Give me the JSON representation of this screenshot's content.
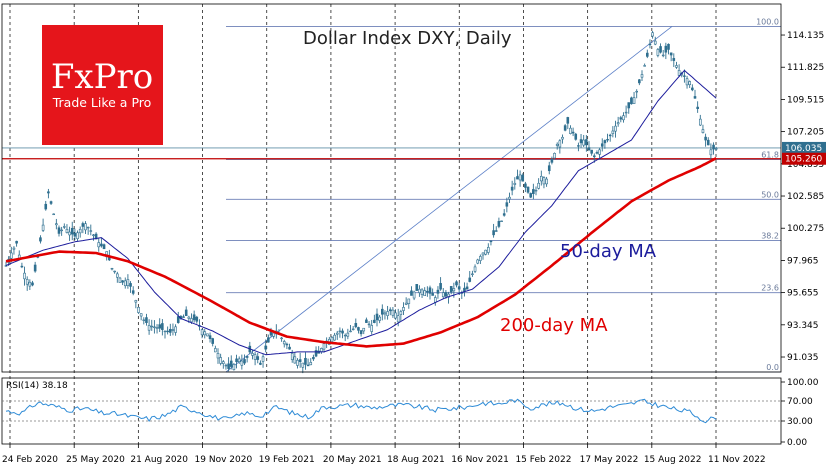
{
  "chart_data": {
    "type": "line",
    "title": "Dollar Index DXY, Daily",
    "logo": {
      "brand": "FxPro",
      "tagline": "Trade Like a Pro",
      "color": "#e5151b"
    },
    "x_labels": [
      "24 Feb 2020",
      "25 May 2020",
      "21 Aug 2020",
      "19 Nov 2020",
      "19 Feb 2021",
      "20 May 2021",
      "18 Aug 2021",
      "16 Nov 2021",
      "15 Feb 2022",
      "17 May 2022",
      "15 Aug 2022",
      "11 Nov 2022"
    ],
    "y_ticks": [
      "114.135",
      "111.825",
      "109.515",
      "107.205",
      "104.895",
      "102.585",
      "100.275",
      "97.965",
      "95.655",
      "93.345",
      "91.035"
    ],
    "ylim": [
      89.96,
      115.5
    ],
    "current_price": "106.035",
    "horizontal_level": "105.260",
    "colors": {
      "price": "#2f6f8f",
      "ma50": "#1c1c9c",
      "ma200": "#e00000",
      "level": "#c00000",
      "fib": "#6b7fb6",
      "rsi": "#2e8bd6",
      "badge": "#2f6f8f"
    },
    "fib_levels": [
      {
        "label": "100.0",
        "value": 114.75
      },
      {
        "label": "61.8",
        "value": 105.2
      },
      {
        "label": "50.0",
        "value": 102.35
      },
      {
        "label": "38.2",
        "value": 99.4
      },
      {
        "label": "23.6",
        "value": 95.65
      },
      {
        "label": "0.0",
        "value": 89.96
      }
    ],
    "series": [
      {
        "type": "candlestick",
        "date_range": [
          "2020-01-20",
          "2022-11-21"
        ],
        "points": [
          [
            0,
            97.6
          ],
          [
            2,
            98.5
          ],
          [
            4,
            99.2
          ],
          [
            6,
            97.5
          ],
          [
            8,
            96.6
          ],
          [
            10,
            96.2
          ],
          [
            12,
            98.2
          ],
          [
            14,
            100.5
          ],
          [
            16,
            102.8
          ],
          [
            18,
            101.3
          ],
          [
            20,
            99.9
          ],
          [
            22,
            100.4
          ],
          [
            24,
            100.0
          ],
          [
            26,
            99.7
          ],
          [
            28,
            100.2
          ],
          [
            30,
            100.6
          ],
          [
            32,
            100.1
          ],
          [
            34,
            99.5
          ],
          [
            36,
            99.0
          ],
          [
            38,
            98.6
          ],
          [
            40,
            97.4
          ],
          [
            42,
            97.0
          ],
          [
            44,
            96.4
          ],
          [
            46,
            96.6
          ],
          [
            48,
            95.6
          ],
          [
            50,
            94.6
          ],
          [
            52,
            93.7
          ],
          [
            54,
            93.3
          ],
          [
            56,
            93.2
          ],
          [
            58,
            93.1
          ],
          [
            60,
            92.9
          ],
          [
            62,
            92.8
          ],
          [
            64,
            93.2
          ],
          [
            66,
            93.8
          ],
          [
            68,
            94.0
          ],
          [
            70,
            93.8
          ],
          [
            72,
            93.6
          ],
          [
            74,
            93.0
          ],
          [
            76,
            92.7
          ],
          [
            78,
            92.0
          ],
          [
            80,
            91.3
          ],
          [
            82,
            90.7
          ],
          [
            84,
            90.2
          ],
          [
            86,
            90.5
          ],
          [
            88,
            90.9
          ],
          [
            90,
            90.6
          ],
          [
            92,
            91.4
          ],
          [
            94,
            91.2
          ],
          [
            96,
            90.5
          ],
          [
            98,
            91.6
          ],
          [
            100,
            92.6
          ],
          [
            102,
            92.9
          ],
          [
            104,
            92.4
          ],
          [
            106,
            91.9
          ],
          [
            108,
            91.3
          ],
          [
            110,
            90.8
          ],
          [
            112,
            90.6
          ],
          [
            114,
            90.4
          ],
          [
            116,
            90.9
          ],
          [
            118,
            91.3
          ],
          [
            120,
            92.0
          ],
          [
            122,
            92.3
          ],
          [
            124,
            92.6
          ],
          [
            126,
            92.9
          ],
          [
            128,
            92.6
          ],
          [
            130,
            92.9
          ],
          [
            132,
            93.2
          ],
          [
            134,
            92.7
          ],
          [
            136,
            93.5
          ],
          [
            138,
            93.3
          ],
          [
            140,
            93.7
          ],
          [
            142,
            94.1
          ],
          [
            144,
            94.3
          ],
          [
            146,
            94.4
          ],
          [
            148,
            94.0
          ],
          [
            150,
            94.6
          ],
          [
            152,
            95.2
          ],
          [
            154,
            95.7
          ],
          [
            156,
            95.9
          ],
          [
            158,
            95.8
          ],
          [
            160,
            95.6
          ],
          [
            162,
            95.3
          ],
          [
            164,
            95.9
          ],
          [
            166,
            95.4
          ],
          [
            168,
            95.7
          ],
          [
            170,
            96.2
          ],
          [
            172,
            95.6
          ],
          [
            174,
            95.9
          ],
          [
            176,
            97.0
          ],
          [
            178,
            98.0
          ],
          [
            180,
            98.5
          ],
          [
            182,
            98.9
          ],
          [
            184,
            99.8
          ],
          [
            186,
            100.4
          ],
          [
            188,
            101.2
          ],
          [
            190,
            102.5
          ],
          [
            192,
            103.5
          ],
          [
            194,
            104.1
          ],
          [
            196,
            103.2
          ],
          [
            198,
            102.5
          ],
          [
            200,
            103.0
          ],
          [
            202,
            104.0
          ],
          [
            204,
            103.8
          ],
          [
            206,
            105.0
          ],
          [
            208,
            106.3
          ],
          [
            210,
            106.8
          ],
          [
            212,
            107.8
          ],
          [
            214,
            107.1
          ],
          [
            216,
            106.2
          ],
          [
            218,
            106.6
          ],
          [
            220,
            105.9
          ],
          [
            222,
            105.4
          ],
          [
            224,
            105.9
          ],
          [
            226,
            106.4
          ],
          [
            228,
            106.9
          ],
          [
            230,
            107.6
          ],
          [
            232,
            108.1
          ],
          [
            234,
            108.6
          ],
          [
            236,
            109.2
          ],
          [
            238,
            110.1
          ],
          [
            240,
            111.3
          ],
          [
            242,
            112.6
          ],
          [
            244,
            114.3
          ],
          [
            246,
            113.1
          ],
          [
            248,
            112.7
          ],
          [
            250,
            113.1
          ],
          [
            252,
            112.3
          ],
          [
            254,
            111.6
          ],
          [
            256,
            111.2
          ],
          [
            258,
            110.8
          ],
          [
            260,
            109.6
          ],
          [
            262,
            108.1
          ],
          [
            264,
            106.6
          ],
          [
            266,
            105.9
          ],
          [
            268,
            106.0
          ]
        ]
      },
      {
        "name": "50-day MA",
        "type": "line",
        "points": [
          [
            0,
            97.6
          ],
          [
            14,
            98.7
          ],
          [
            26,
            99.3
          ],
          [
            36,
            99.6
          ],
          [
            46,
            98.1
          ],
          [
            56,
            95.7
          ],
          [
            66,
            93.8
          ],
          [
            78,
            92.9
          ],
          [
            88,
            91.9
          ],
          [
            98,
            91.2
          ],
          [
            110,
            91.4
          ],
          [
            120,
            91.4
          ],
          [
            132,
            92.2
          ],
          [
            144,
            93.0
          ],
          [
            156,
            94.4
          ],
          [
            166,
            95.3
          ],
          [
            176,
            95.9
          ],
          [
            186,
            97.5
          ],
          [
            196,
            100.0
          ],
          [
            206,
            101.9
          ],
          [
            216,
            104.4
          ],
          [
            226,
            105.5
          ],
          [
            236,
            106.6
          ],
          [
            246,
            109.4
          ],
          [
            256,
            111.6
          ],
          [
            262,
            110.6
          ],
          [
            268,
            109.6
          ]
        ]
      },
      {
        "name": "200-day MA",
        "type": "line",
        "points": [
          [
            0,
            97.9
          ],
          [
            20,
            98.6
          ],
          [
            34,
            98.5
          ],
          [
            46,
            97.9
          ],
          [
            60,
            96.8
          ],
          [
            76,
            95.2
          ],
          [
            92,
            93.5
          ],
          [
            106,
            92.5
          ],
          [
            120,
            92.1
          ],
          [
            136,
            91.8
          ],
          [
            150,
            92.0
          ],
          [
            164,
            92.8
          ],
          [
            178,
            93.9
          ],
          [
            192,
            95.5
          ],
          [
            206,
            97.6
          ],
          [
            222,
            100.1
          ],
          [
            236,
            102.2
          ],
          [
            250,
            103.7
          ],
          [
            262,
            104.7
          ],
          [
            268,
            105.3
          ]
        ]
      }
    ],
    "ma_labels": [
      {
        "text": "50-day MA",
        "color": "#1c1c9c"
      },
      {
        "text": "200-day MA",
        "color": "#e00000"
      }
    ],
    "rsi": {
      "label": "RSI(14) 38.18",
      "ticks": [
        "100.00",
        "70.00",
        "30.00",
        "0.00"
      ],
      "range": [
        0,
        100
      ],
      "dotted_levels": [
        70,
        30
      ],
      "values": [
        [
          0,
          50
        ],
        [
          6,
          46
        ],
        [
          12,
          67
        ],
        [
          18,
          60
        ],
        [
          24,
          52
        ],
        [
          30,
          55
        ],
        [
          36,
          46
        ],
        [
          42,
          44
        ],
        [
          48,
          38
        ],
        [
          54,
          34
        ],
        [
          60,
          41
        ],
        [
          66,
          58
        ],
        [
          72,
          50
        ],
        [
          78,
          38
        ],
        [
          84,
          33
        ],
        [
          90,
          46
        ],
        [
          96,
          40
        ],
        [
          102,
          58
        ],
        [
          108,
          46
        ],
        [
          114,
          38
        ],
        [
          120,
          58
        ],
        [
          126,
          60
        ],
        [
          132,
          62
        ],
        [
          138,
          56
        ],
        [
          144,
          60
        ],
        [
          150,
          62
        ],
        [
          156,
          58
        ],
        [
          162,
          52
        ],
        [
          168,
          55
        ],
        [
          174,
          58
        ],
        [
          180,
          66
        ],
        [
          186,
          64
        ],
        [
          192,
          72
        ],
        [
          198,
          56
        ],
        [
          204,
          64
        ],
        [
          210,
          66
        ],
        [
          216,
          54
        ],
        [
          222,
          50
        ],
        [
          228,
          58
        ],
        [
          234,
          62
        ],
        [
          240,
          70
        ],
        [
          246,
          62
        ],
        [
          252,
          54
        ],
        [
          258,
          48
        ],
        [
          264,
          30
        ],
        [
          268,
          38
        ]
      ]
    }
  }
}
